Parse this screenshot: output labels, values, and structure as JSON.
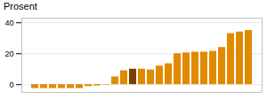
{
  "chart_data": {
    "type": "bar",
    "title": "Prosent",
    "categories": [
      null,
      null,
      null,
      null,
      null,
      null,
      null,
      null,
      null,
      null,
      null,
      null,
      null,
      null,
      null,
      null,
      null,
      null,
      null,
      null,
      null,
      null,
      null,
      null,
      null
    ],
    "values": [
      -2.5,
      -2.5,
      -2.5,
      -2.5,
      -2.5,
      -2.5,
      -1.2,
      -0.8,
      -0.3,
      5.0,
      9.0,
      10.0,
      10.0,
      9.5,
      12.0,
      13.5,
      20.0,
      20.5,
      21.0,
      21.0,
      21.5,
      24.0,
      33.0,
      34.0,
      35.0
    ],
    "colors": [
      "#E08A00",
      "#E08A00",
      "#E08A00",
      "#E08A00",
      "#E08A00",
      "#E08A00",
      "#E08A00",
      "#E08A00",
      "#E08A00",
      "#E08A00",
      "#E08A00",
      "#7B3F00",
      "#E08A00",
      "#E08A00",
      "#E08A00",
      "#E08A00",
      "#E08A00",
      "#E08A00",
      "#E08A00",
      "#E08A00",
      "#E08A00",
      "#E08A00",
      "#E08A00",
      "#E08A00",
      "#E08A00"
    ],
    "ylim": [
      -5,
      43
    ],
    "yticks": [
      0,
      20,
      40
    ],
    "grid": true,
    "tick_labels": "y"
  }
}
